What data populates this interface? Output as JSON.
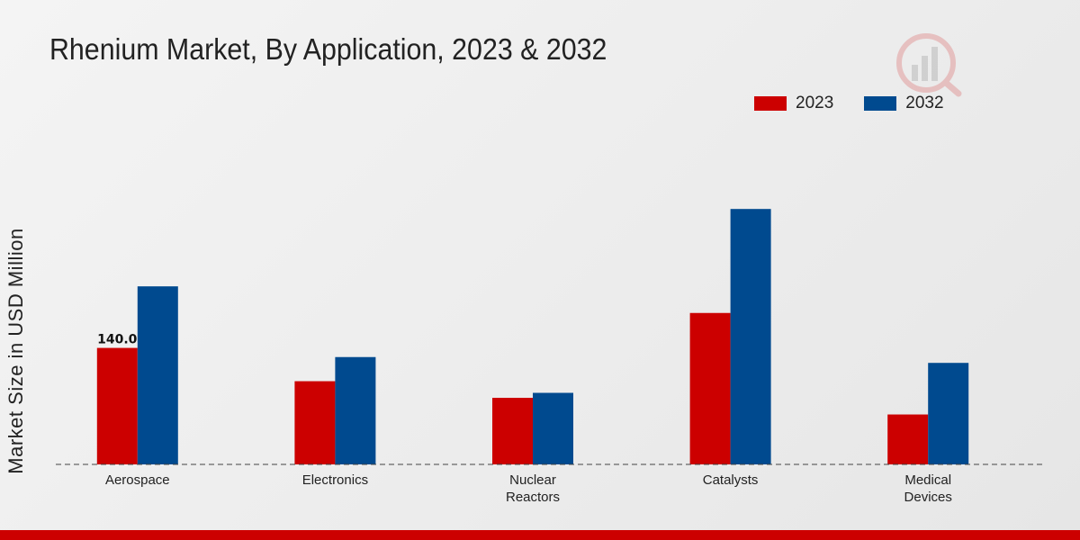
{
  "chart_data": {
    "type": "bar",
    "title": "Rhenium Market, By Application, 2023 & 2032",
    "xlabel": "",
    "ylabel": "Market Size in USD Million",
    "categories": [
      [
        "Aerospace"
      ],
      [
        "Electronics"
      ],
      [
        "Nuclear",
        "Reactors"
      ],
      [
        "Catalysts"
      ],
      [
        "Medical",
        "Devices"
      ]
    ],
    "series": [
      {
        "name": "2023",
        "color": "#cc0000",
        "values": [
          140.0,
          100.0,
          80.0,
          182.0,
          60.0
        ]
      },
      {
        "name": "2032",
        "color": "#004a8f",
        "values": [
          214.0,
          129.0,
          86.0,
          307.0,
          122.0
        ]
      }
    ],
    "data_labels": [
      {
        "series": 0,
        "category": 0,
        "text": "140.0"
      }
    ],
    "ylim": [
      0,
      450
    ],
    "legend_position": "top-right",
    "grid": false
  }
}
